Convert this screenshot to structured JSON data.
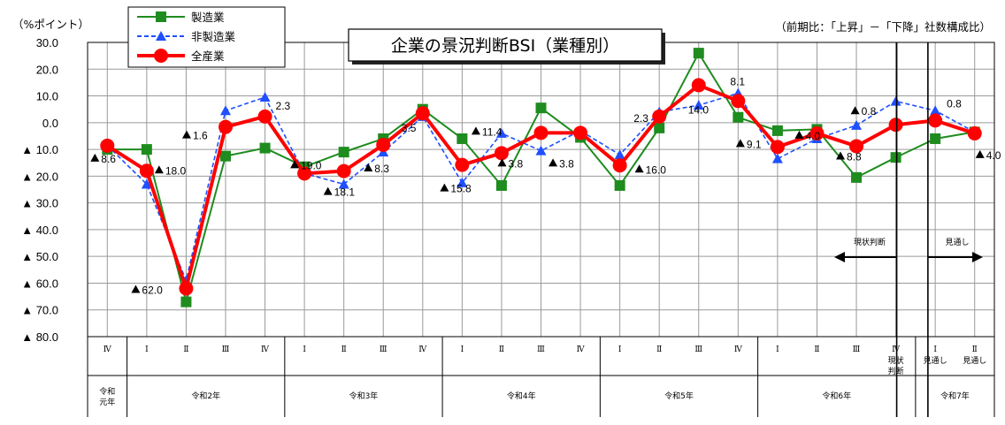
{
  "chart_data": {
    "type": "line",
    "title": "企業の景況判断BSI（業種別）",
    "subtitle": "（前期比：「上昇」－「下降」社数構成比）",
    "ylabel": "（%ポイント）",
    "ylim": [
      -80,
      30
    ],
    "y_ticks": [
      {
        "v": 30,
        "label": "30.0"
      },
      {
        "v": 20,
        "label": "20.0"
      },
      {
        "v": 10,
        "label": "10.0"
      },
      {
        "v": 0,
        "label": "0.0"
      },
      {
        "v": -10,
        "label": "▲ 10.0"
      },
      {
        "v": -20,
        "label": "▲ 20.0"
      },
      {
        "v": -30,
        "label": "▲ 30.0"
      },
      {
        "v": -40,
        "label": "▲ 40.0"
      },
      {
        "v": -50,
        "label": "▲ 50.0"
      },
      {
        "v": -60,
        "label": "▲ 60.0"
      },
      {
        "v": -70,
        "label": "▲ 70.0"
      },
      {
        "v": -80,
        "label": "▲ 80.0"
      }
    ],
    "grid": true,
    "quarters": [
      "Ⅳ",
      "Ⅰ",
      "Ⅱ",
      "Ⅲ",
      "Ⅳ",
      "Ⅰ",
      "Ⅱ",
      "Ⅲ",
      "Ⅳ",
      "Ⅰ",
      "Ⅱ",
      "Ⅲ",
      "Ⅳ",
      "Ⅰ",
      "Ⅱ",
      "Ⅲ",
      "Ⅳ",
      "Ⅰ",
      "Ⅱ",
      "Ⅲ",
      "Ⅳ",
      "Ⅰ",
      "Ⅱ"
    ],
    "quarter_suffix": [
      {
        "index": 20,
        "lines": [
          "現状",
          "判断"
        ]
      },
      {
        "index": 21,
        "lines": [
          "見通し"
        ]
      },
      {
        "index": 22,
        "lines": [
          "見通し"
        ]
      }
    ],
    "years": [
      {
        "label": "令和元年",
        "lines": [
          "令和",
          "元年"
        ],
        "start": 0,
        "end": 0
      },
      {
        "label": "令和2年",
        "start": 1,
        "end": 4
      },
      {
        "label": "令和3年",
        "start": 5,
        "end": 8
      },
      {
        "label": "令和4年",
        "start": 9,
        "end": 12
      },
      {
        "label": "令和5年",
        "start": 13,
        "end": 16
      },
      {
        "label": "令和6年",
        "start": 17,
        "end": 20
      },
      {
        "label": "令和7年",
        "start": 21,
        "end": 22
      }
    ],
    "series": [
      {
        "name": "製造業",
        "color": "#1e8c1e",
        "marker": "square",
        "dash": false,
        "values": [
          -10,
          -10,
          -67,
          -12.5,
          -9.5,
          -16.5,
          -11,
          -6,
          5,
          -6,
          -23.5,
          5.5,
          -5.5,
          -23.5,
          -2,
          26,
          2,
          -3,
          -2.5,
          -20.5,
          -13,
          -6,
          -3.5
        ]
      },
      {
        "name": "非製造業",
        "color": "#1f4fff",
        "marker": "triangle",
        "dash": true,
        "values": [
          -8.5,
          -23,
          -59,
          4.5,
          9.5,
          -19,
          -23,
          -11,
          2.3,
          -22.5,
          -4,
          -10.5,
          -3,
          -12,
          4,
          6.5,
          11,
          -13.5,
          -6,
          -1,
          8,
          4.5,
          -3.5
        ]
      },
      {
        "name": "全産業",
        "color": "#ff0000",
        "marker": "circle",
        "dash": false,
        "values": [
          -8.6,
          -18,
          -62,
          -1.6,
          2.3,
          -19,
          -18.1,
          -8.3,
          3.5,
          -15.8,
          -11.4,
          -3.8,
          -3.8,
          -16,
          2.3,
          14,
          8.1,
          -9.1,
          -4,
          -8.8,
          -0.8,
          0.8,
          -4
        ]
      }
    ],
    "data_labels": [
      {
        "index": 0,
        "value": -8.6,
        "text": "8.6",
        "neg": true,
        "dx": -14,
        "dy": 19
      },
      {
        "index": 1,
        "value": -18.0,
        "text": "18.0",
        "neg": true,
        "dx": 14,
        "dy": 4
      },
      {
        "index": 2,
        "value": -62.0,
        "text": "62.0",
        "neg": true,
        "dx": -57,
        "dy": 6
      },
      {
        "index": 3,
        "value": -1.6,
        "text": "1.6",
        "neg": true,
        "dx": -44,
        "dy": 14
      },
      {
        "index": 4,
        "value": 2.3,
        "text": "2.3",
        "neg": false,
        "dx": 12,
        "dy": -8
      },
      {
        "index": 5,
        "value": -19.0,
        "text": "19.0",
        "neg": true,
        "dx": -11,
        "dy": -5
      },
      {
        "index": 6,
        "value": -18.1,
        "text": "18.1",
        "neg": true,
        "dx": -18,
        "dy": 28
      },
      {
        "index": 7,
        "value": -8.3,
        "text": "8.3",
        "neg": true,
        "dx": -17,
        "dy": 31
      },
      {
        "index": 8,
        "value": 3.5,
        "text": "3.5",
        "neg": false,
        "dx": -24,
        "dy": 21
      },
      {
        "index": 9,
        "value": -15.8,
        "text": "15.8",
        "neg": true,
        "dx": -20,
        "dy": 31
      },
      {
        "index": 10,
        "value": -11.4,
        "text": "11.4",
        "neg": true,
        "dx": -29,
        "dy": -20
      },
      {
        "index": 11,
        "value": -3.8,
        "text": "3.8",
        "neg": true,
        "dx": -44,
        "dy": 39
      },
      {
        "index": 12,
        "value": -3.8,
        "text": "3.8",
        "neg": true,
        "dx": -31,
        "dy": 39
      },
      {
        "index": 13,
        "value": -16.0,
        "text": "16.0",
        "neg": true,
        "dx": 22,
        "dy": 9
      },
      {
        "index": 14,
        "value": 2.3,
        "text": "2.3",
        "neg": false,
        "dx": -29,
        "dy": 6
      },
      {
        "index": 15,
        "value": 14.0,
        "text": "14.0",
        "neg": false,
        "dx": -12,
        "dy": 32
      },
      {
        "index": 16,
        "value": 8.1,
        "text": "8.1",
        "neg": false,
        "dx": -9,
        "dy": -18
      },
      {
        "index": 17,
        "value": -9.1,
        "text": "9.1",
        "neg": true,
        "dx": -42,
        "dy": 1
      },
      {
        "index": 18,
        "value": -4.0,
        "text": "4.0",
        "neg": true,
        "dx": -20,
        "dy": 7
      },
      {
        "index": 19,
        "value": -8.8,
        "text": "8.8",
        "neg": true,
        "dx": -18,
        "dy": 16
      },
      {
        "index": 20,
        "value": -0.8,
        "text": "0.8",
        "neg": true,
        "dx": -46,
        "dy": -11
      },
      {
        "index": 21,
        "value": 0.8,
        "text": "0.8",
        "neg": false,
        "dx": 13,
        "dy": -15
      },
      {
        "index": 22,
        "value": -4.0,
        "text": "4.0",
        "neg": true,
        "dx": 6,
        "dy": 29
      }
    ],
    "annotations": [
      {
        "text": "現状判断",
        "direction": "left"
      },
      {
        "text": "見通し",
        "direction": "right"
      }
    ]
  }
}
